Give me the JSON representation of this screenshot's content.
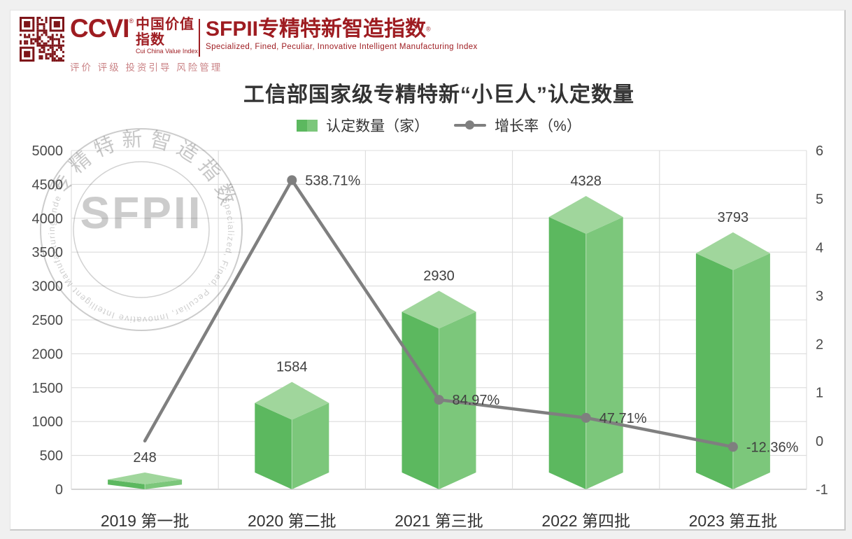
{
  "page": {
    "background": "#f0f0f0",
    "card_background": "#ffffff"
  },
  "header": {
    "brand_color": "#9e1c21",
    "qr_color": "#7e1519",
    "ccvi": {
      "logo": "CCVI",
      "reg_mark": "®",
      "cn_name": "中国价值指数",
      "en_name": "Cui China Value Index",
      "tagline": "评价 评级 投资引导 风险管理"
    },
    "sfpii": {
      "title": "SFPII专精特新智造指数",
      "reg_mark": "®",
      "subtitle": "Specialized, Fined, Peculiar, Innovative  Intelligent Manufacturing Index"
    }
  },
  "watermark": {
    "big_text": "SFPII",
    "arc_cn": "专精特新智造指数",
    "arc_en": "Specialized, Fined, Peculiar, Innovative   Intelligent Manufacturing Index(SFPII)"
  },
  "chart_data": {
    "type": "bar+line",
    "title": "工信部国家级专精特新“小巨人”认定数量",
    "legend": [
      {
        "label": "认定数量（家）",
        "type": "bar"
      },
      {
        "label": "增长率（%）",
        "type": "line"
      }
    ],
    "categories": [
      "2019 第一批",
      "2020 第二批",
      "2021 第三批",
      "2022 第四批",
      "2023 第五批"
    ],
    "series": [
      {
        "name": "认定数量（家）",
        "type": "bar",
        "axis": "left",
        "values": [
          248,
          1584,
          2930,
          4328,
          3793
        ]
      },
      {
        "name": "增长率（%）",
        "type": "line",
        "axis": "right",
        "values_pct": [
          null,
          538.71,
          84.97,
          47.71,
          -12.36
        ],
        "plotted_points_pct": [
          0,
          538.71,
          84.97,
          47.71,
          -12.36
        ],
        "point_labels": [
          "",
          "538.71%",
          "84.97%",
          "47.71%",
          "-12.36%"
        ],
        "show_marker": [
          false,
          true,
          true,
          true,
          true
        ]
      }
    ],
    "left_axis": {
      "min": 0,
      "max": 5000,
      "step": 500,
      "ticks": [
        "5000",
        "4500",
        "4000",
        "3500",
        "3000",
        "2500",
        "2000",
        "1500",
        "1000",
        "500",
        "0"
      ]
    },
    "right_axis": {
      "min": -1,
      "max": 6,
      "step": 1,
      "ticks": [
        "6",
        "5",
        "4",
        "3",
        "2",
        "1",
        "0",
        "-1"
      ]
    },
    "grid": true,
    "legend_position": "top",
    "colors": {
      "bar_left_face": "#5cb85f",
      "bar_right_face": "#7cc77b",
      "bar_top_face": "#a0d69c",
      "line": "#7f7f7f",
      "grid": "#dcdcdc",
      "axis_line": "#c6c6c6",
      "tick_label": "#4a4a4a",
      "value_label": "#404040",
      "category_label": "#333333"
    }
  }
}
